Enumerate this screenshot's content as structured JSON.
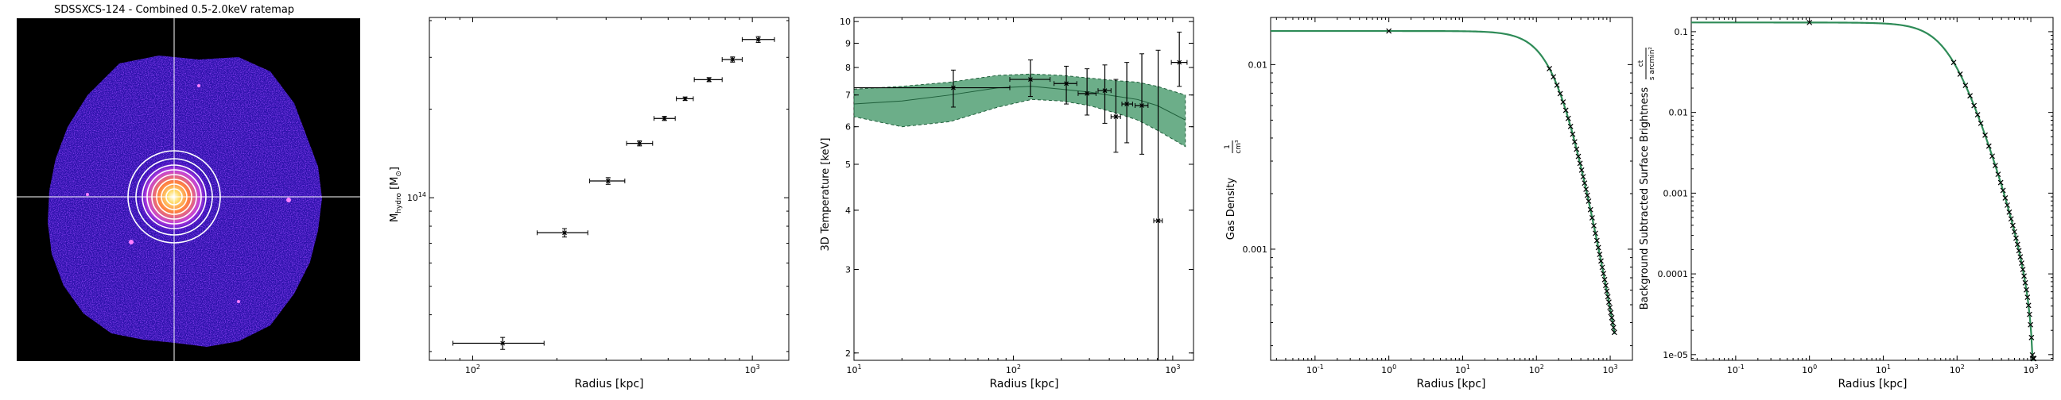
{
  "image_panel": {
    "title": "SDSSXCS-124 - Combined 0.5-2.0keV ratemap",
    "colors": {
      "background": "#000000",
      "low": "#3300cc",
      "mid": "#c040e0",
      "high": "#ffe070",
      "crosshair": "#ffffff",
      "rings": "#ffffff"
    }
  },
  "chart_data": [
    {
      "type": "scatter",
      "name": "mass-profile",
      "xlabel": "Radius [kpc]",
      "ylabel_main": "M",
      "ylabel_sub": "hydro",
      "ylabel_unit": "[M",
      "ylabel_unit_sub": "⊙",
      "ylabel_close": "]",
      "xscale": "log",
      "yscale": "log",
      "xlim": [
        70,
        1350
      ],
      "ylim": [
        28000000000000.0,
        410000000000000.0
      ],
      "xticks": [
        {
          "v": 100,
          "base": "10",
          "exp": "2"
        },
        {
          "v": 1000,
          "base": "10",
          "exp": "3"
        }
      ],
      "yticks": [
        {
          "v": 100000000000000.0,
          "base": "10",
          "exp": "14"
        }
      ],
      "color": "#000000",
      "points": [
        {
          "x": 128,
          "y": 32000000000000.0,
          "xlo": 85,
          "xhi": 180,
          "ylo": 30500000000000.0,
          "yhi": 33500000000000.0
        },
        {
          "x": 213,
          "y": 76000000000000.0,
          "xlo": 170,
          "xhi": 258,
          "ylo": 73500000000000.0,
          "yhi": 78500000000000.0
        },
        {
          "x": 305,
          "y": 114000000000000.0,
          "xlo": 262,
          "xhi": 350,
          "ylo": 111000000000000.0,
          "yhi": 117000000000000.0
        },
        {
          "x": 395,
          "y": 153000000000000.0,
          "xlo": 355,
          "xhi": 440,
          "ylo": 150000000000000.0,
          "yhi": 156000000000000.0
        },
        {
          "x": 485,
          "y": 186000000000000.0,
          "xlo": 445,
          "xhi": 530,
          "ylo": 183000000000000.0,
          "yhi": 189000000000000.0
        },
        {
          "x": 575,
          "y": 217000000000000.0,
          "xlo": 535,
          "xhi": 615,
          "ylo": 214000000000000.0,
          "yhi": 220000000000000.0
        },
        {
          "x": 700,
          "y": 252000000000000.0,
          "xlo": 620,
          "xhi": 780,
          "ylo": 248000000000000.0,
          "yhi": 256000000000000.0
        },
        {
          "x": 850,
          "y": 295000000000000.0,
          "xlo": 780,
          "xhi": 920,
          "ylo": 289000000000000.0,
          "yhi": 301000000000000.0
        },
        {
          "x": 1050,
          "y": 345000000000000.0,
          "xlo": 920,
          "xhi": 1200,
          "ylo": 337000000000000.0,
          "yhi": 353000000000000.0
        }
      ]
    },
    {
      "type": "scatter",
      "name": "temperature-profile",
      "xlabel": "Radius [kpc]",
      "ylabel": "3D Temperature [keV]",
      "xscale": "log",
      "yscale": "log",
      "xlim": [
        10,
        1350
      ],
      "ylim": [
        1.93,
        10.2
      ],
      "xticks": [
        {
          "v": 10,
          "base": "10",
          "exp": "1"
        },
        {
          "v": 100,
          "base": "10",
          "exp": "2"
        },
        {
          "v": 1000,
          "base": "10",
          "exp": "3"
        }
      ],
      "yticks": [
        {
          "v": 2,
          "label": "2"
        },
        {
          "v": 3,
          "label": "3"
        },
        {
          "v": 4,
          "label": "4"
        },
        {
          "v": 5,
          "label": "5"
        },
        {
          "v": 6,
          "label": "6"
        },
        {
          "v": 7,
          "label": "7"
        },
        {
          "v": 8,
          "label": "8"
        },
        {
          "v": 9,
          "label": "9"
        },
        {
          "v": 10,
          "label": "10"
        }
      ],
      "band_color": "#2e8b57",
      "model": {
        "x": [
          10,
          20,
          40,
          80,
          130,
          200,
          300,
          450,
          600,
          800,
          1200
        ],
        "mid": [
          6.7,
          6.8,
          7.0,
          7.25,
          7.3,
          7.2,
          7.1,
          6.95,
          6.85,
          6.65,
          6.2
        ],
        "lo": [
          6.3,
          6.0,
          6.15,
          6.6,
          6.85,
          6.8,
          6.65,
          6.4,
          6.2,
          5.9,
          5.45
        ],
        "hi": [
          7.2,
          7.3,
          7.45,
          7.7,
          7.75,
          7.7,
          7.6,
          7.5,
          7.45,
          7.3,
          7.0
        ]
      },
      "points": [
        {
          "x": 42,
          "y": 7.25,
          "xlo": 10,
          "xhi": 95,
          "ylo": 6.6,
          "yhi": 7.9
        },
        {
          "x": 128,
          "y": 7.55,
          "xlo": 95,
          "xhi": 170,
          "ylo": 6.95,
          "yhi": 8.3
        },
        {
          "x": 215,
          "y": 7.4,
          "xlo": 180,
          "xhi": 250,
          "ylo": 6.7,
          "yhi": 8.05
        },
        {
          "x": 290,
          "y": 7.05,
          "xlo": 255,
          "xhi": 330,
          "ylo": 6.35,
          "yhi": 7.95
        },
        {
          "x": 375,
          "y": 7.15,
          "xlo": 340,
          "xhi": 410,
          "ylo": 6.1,
          "yhi": 8.1
        },
        {
          "x": 440,
          "y": 6.3,
          "xlo": 410,
          "xhi": 470,
          "ylo": 5.3,
          "yhi": 7.55
        },
        {
          "x": 515,
          "y": 6.7,
          "xlo": 480,
          "xhi": 560,
          "ylo": 5.55,
          "yhi": 8.2
        },
        {
          "x": 640,
          "y": 6.65,
          "xlo": 580,
          "xhi": 700,
          "ylo": 5.25,
          "yhi": 8.55
        },
        {
          "x": 810,
          "y": 3.8,
          "xlo": 760,
          "xhi": 860,
          "ylo": 1.93,
          "yhi": 8.7
        },
        {
          "x": 1100,
          "y": 8.2,
          "xlo": 980,
          "xhi": 1230,
          "ylo": 7.3,
          "yhi": 9.5
        }
      ]
    },
    {
      "type": "line",
      "name": "density-profile",
      "xlabel": "Radius [kpc]",
      "ylabel": "Gas Density",
      "ylabel_unit_num": "1",
      "ylabel_unit_den": "cm³",
      "xscale": "log",
      "yscale": "log",
      "xlim": [
        0.025,
        2000
      ],
      "ylim": [
        0.00025,
        0.018
      ],
      "xticks": [
        {
          "v": 0.1,
          "base": "10",
          "exp": "-1"
        },
        {
          "v": 1,
          "base": "10",
          "exp": "0"
        },
        {
          "v": 10,
          "base": "10",
          "exp": "1"
        },
        {
          "v": 100,
          "base": "10",
          "exp": "2"
        },
        {
          "v": 1000,
          "base": "10",
          "exp": "3"
        }
      ],
      "yticks": [
        {
          "v": 0.01,
          "label": "0.01"
        },
        {
          "v": 0.001,
          "label": "0.001"
        }
      ],
      "rc": 200,
      "beta": 0.7,
      "n0": 0.0152,
      "model_color": "#2e8b57",
      "data_x": [
        1,
        150,
        170,
        190,
        210,
        230,
        250,
        270,
        290,
        310,
        330,
        350,
        370,
        390,
        410,
        430,
        450,
        470,
        490,
        510,
        540,
        570,
        600,
        630,
        660,
        690,
        720,
        750,
        780,
        810,
        840,
        870,
        900,
        930,
        960,
        990,
        1020,
        1050,
        1080,
        1110,
        1140
      ]
    },
    {
      "type": "line",
      "name": "surface-brightness-profile",
      "xlabel": "Radius [kpc]",
      "ylabel": "Background Subtracted Surface Brightness",
      "ylabel_unit_num": "ct",
      "ylabel_unit_den": "s arcmin²",
      "xscale": "log",
      "yscale": "log",
      "xlim": [
        0.025,
        2000
      ],
      "ylim": [
        8.5e-06,
        0.15
      ],
      "xticks": [
        {
          "v": 0.1,
          "base": "10",
          "exp": "-1"
        },
        {
          "v": 1,
          "base": "10",
          "exp": "0"
        },
        {
          "v": 10,
          "base": "10",
          "exp": "1"
        },
        {
          "v": 100,
          "base": "10",
          "exp": "2"
        },
        {
          "v": 1000,
          "base": "10",
          "exp": "3"
        }
      ],
      "yticks": [
        {
          "v": 0.1,
          "label": "0.1"
        },
        {
          "v": 0.01,
          "label": "0.01"
        },
        {
          "v": 0.001,
          "label": "0.001"
        },
        {
          "v": 0.0001,
          "label": "0.0001"
        },
        {
          "v": 1e-05,
          "label": "1e-05"
        }
      ],
      "s0": 0.13,
      "rc": 80,
      "beta": 0.6,
      "rcut": 1100,
      "model_color": "#2e8b57",
      "data_x": [
        1,
        90,
        110,
        130,
        150,
        170,
        190,
        210,
        240,
        270,
        300,
        330,
        360,
        390,
        420,
        450,
        480,
        510,
        540,
        570,
        600,
        630,
        660,
        690,
        720,
        750,
        780,
        810,
        840,
        870,
        900,
        930,
        960,
        990,
        1020,
        1050,
        1070,
        1085,
        1095,
        1100
      ]
    }
  ]
}
